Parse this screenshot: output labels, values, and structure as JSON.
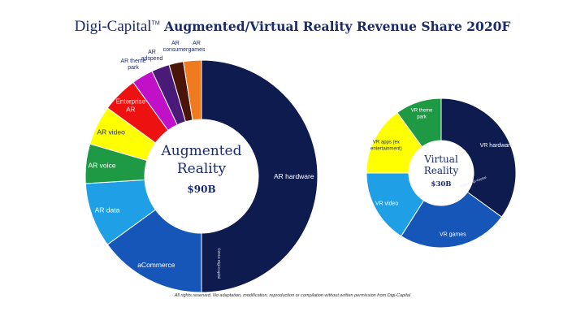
{
  "header": {
    "brand": "Digi-Capital",
    "brand_tm": "TM",
    "title": "Augmented/Virtual Reality Revenue Share 2020F"
  },
  "footer": {
    "notice": "All rights reserved. No adaptation, modification, reproduction or compilation without written permission from Digi-Capital"
  },
  "chart_data": [
    {
      "type": "pie",
      "style": "donut",
      "center_title_lines": [
        "Augmented",
        "Reality"
      ],
      "center_value": "$90B",
      "watermark": "©2016 Digi-Capital",
      "slices": [
        {
          "label": "AR hardware",
          "share": 50.0,
          "color": "#0d1b4f",
          "text_color": "#ffffff"
        },
        {
          "label": "aCommerce",
          "share": 15.0,
          "color": "#1656b8",
          "text_color": "#ffffff"
        },
        {
          "label": "AR data",
          "share": 9.0,
          "color": "#1fa0e6",
          "text_color": "#ffffff"
        },
        {
          "label": "AR voice",
          "share": 5.5,
          "color": "#1f9a44",
          "text_color": "#ffffff"
        },
        {
          "label": "AR video",
          "share": 5.5,
          "color": "#ffff00",
          "text_color": "#1a2a6c"
        },
        {
          "label": "Enterprise AR",
          "share": 5.0,
          "color": "#ee1111",
          "text_color": "#ffffff"
        },
        {
          "label": "AR theme park",
          "share": 3.0,
          "color": "#c010c8",
          "text_color": "#1a2a6c"
        },
        {
          "label": "AR adspend",
          "share": 2.5,
          "color": "#4a1a78",
          "text_color": "#1a2a6c"
        },
        {
          "label": "AR consumer",
          "share": 2.0,
          "color": "#4a1408",
          "text_color": "#1a2a6c"
        },
        {
          "label": "AR games",
          "share": 2.5,
          "color": "#f07a20",
          "text_color": "#1a2a6c"
        }
      ]
    },
    {
      "type": "pie",
      "style": "donut",
      "center_title_lines": [
        "Virtual",
        "Reality"
      ],
      "center_value": "$30B",
      "watermark": "©2016 Digi-Capital",
      "slices": [
        {
          "label": "VR hardware",
          "share": 35.0,
          "color": "#0d1b4f",
          "text_color": "#ffffff"
        },
        {
          "label": "VR games",
          "share": 24.0,
          "color": "#1656b8",
          "text_color": "#ffffff"
        },
        {
          "label": "VR video",
          "share": 16.0,
          "color": "#1fa0e6",
          "text_color": "#ffffff"
        },
        {
          "label": "VR apps (ex entertainment)",
          "share": 15.0,
          "color": "#ffff00",
          "text_color": "#1a2a6c"
        },
        {
          "label": "VR theme park",
          "share": 10.0,
          "color": "#1f9a44",
          "text_color": "#ffffff"
        }
      ]
    }
  ]
}
